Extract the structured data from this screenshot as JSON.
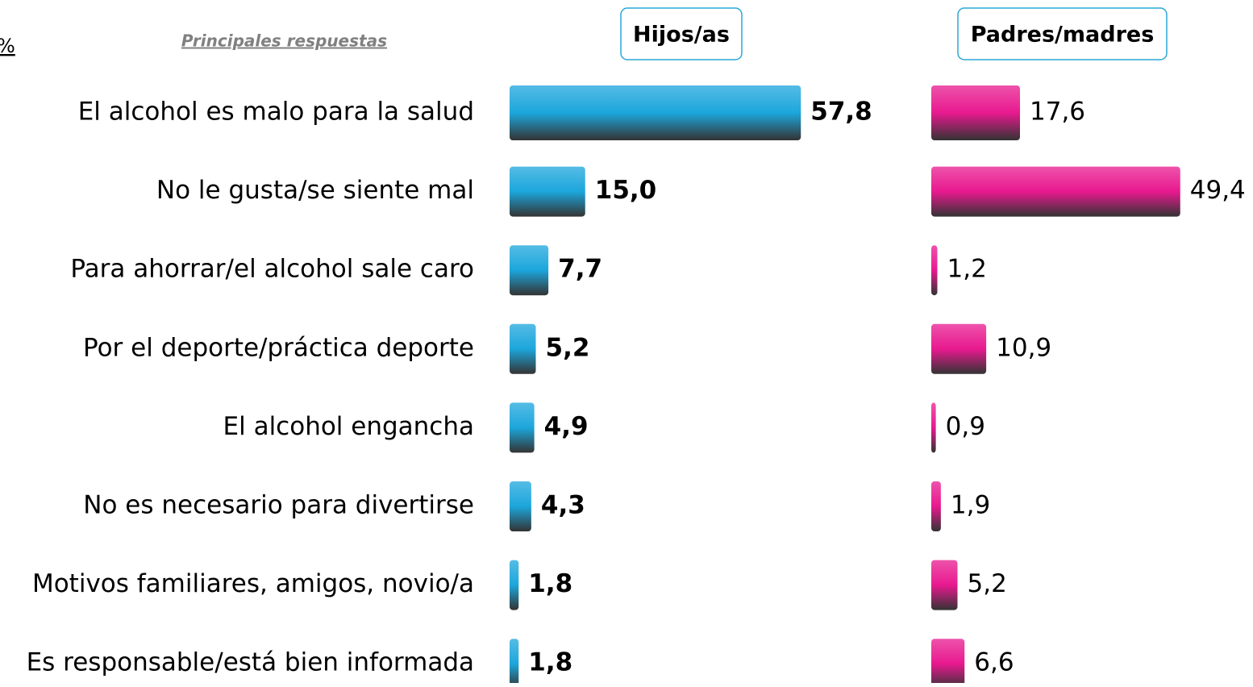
{
  "corner_note": "%",
  "chart_data": {
    "type": "hbar",
    "subtitle": "Principales respuestas",
    "categories": [
      "El alcohol es malo para la salud",
      "No le gusta/se siente mal",
      "Para ahorrar/el alcohol sale caro",
      "Por el deporte/práctica deporte",
      "El alcohol engancha",
      "No es necesario para divertirse",
      "Motivos familiares, amigos, novio/a",
      "Es responsable/está bien informada"
    ],
    "xlim": [
      0,
      60
    ],
    "series": [
      {
        "name": "Hijos/as",
        "color": "#1ca6dc",
        "label_weight": "bold",
        "values": [
          57.8,
          15.0,
          7.7,
          5.2,
          4.9,
          4.3,
          1.8,
          1.8
        ],
        "value_labels": [
          "57,8",
          "15,0",
          "7,7",
          "5,2",
          "4,9",
          "4,3",
          "1,8",
          "1,8"
        ]
      },
      {
        "name": "Padres/madres",
        "color": "#e8198f",
        "label_weight": "normal",
        "values": [
          17.6,
          49.4,
          1.2,
          10.9,
          0.9,
          1.9,
          5.2,
          6.6
        ],
        "value_labels": [
          "17,6",
          "49,4",
          "1,2",
          "10,9",
          "0,9",
          "1,9",
          "5,2",
          "6,6"
        ]
      }
    ]
  }
}
